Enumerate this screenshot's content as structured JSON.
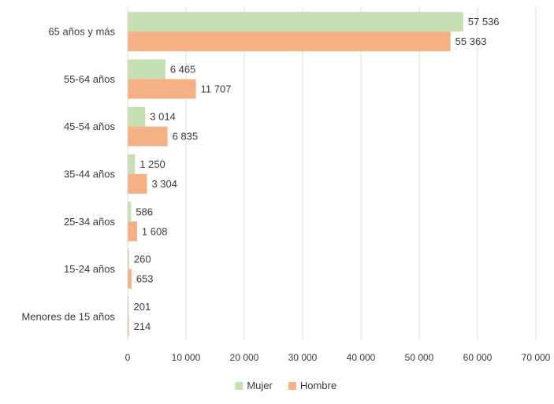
{
  "chart_data": {
    "type": "bar",
    "orientation": "horizontal",
    "categories": [
      "65 años y más",
      "55-64 años",
      "45-54 años",
      "35-44 años",
      "25-34 años",
      "15-24 años",
      "Menores de 15 años"
    ],
    "series": [
      {
        "name": "Mujer",
        "color": "#c6e0b4",
        "values": [
          57536,
          6465,
          3014,
          1250,
          586,
          260,
          201
        ]
      },
      {
        "name": "Hombre",
        "color": "#f4b183",
        "values": [
          55363,
          11707,
          6835,
          3304,
          1608,
          653,
          214
        ]
      }
    ],
    "value_labels": {
      "Mujer": [
        "57 536",
        "6 465",
        "3 014",
        "1 250",
        "586",
        "260",
        "201"
      ],
      "Hombre": [
        "55 363",
        "11 707",
        "6 835",
        "3 304",
        "1 608",
        "653",
        "214"
      ]
    },
    "xlim": [
      0,
      70000
    ],
    "x_ticks": [
      0,
      10000,
      20000,
      30000,
      40000,
      50000,
      60000,
      70000
    ],
    "x_tick_labels": [
      "0",
      "10 000",
      "20 000",
      "30 000",
      "40 000",
      "50 000",
      "60 000",
      "70 000"
    ],
    "grid": true,
    "grid_color": "#d9d9d9",
    "legend_position": "bottom",
    "title": "",
    "xlabel": "",
    "ylabel": ""
  }
}
